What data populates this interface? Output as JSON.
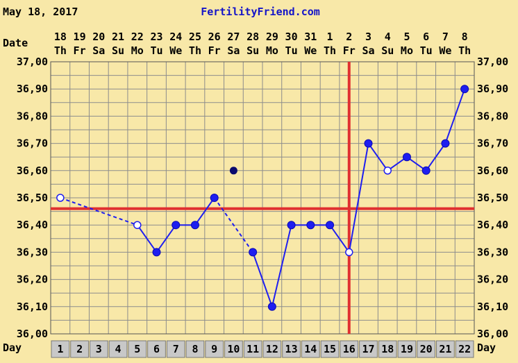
{
  "header": {
    "date": "May 18, 2017",
    "site": "FertilityFriend.com"
  },
  "colors": {
    "background": "#F8E8A8",
    "grid": "#8C8C8C",
    "line": "#1E1EF0",
    "coverline": "#E03030",
    "ovulation": "#E03030",
    "day_cell": "#C8C8C8",
    "site_text": "#1414C8"
  },
  "chart_data": {
    "type": "line",
    "title": "",
    "ylabel": "",
    "xlabel": "Day",
    "date_row_label": "Date",
    "day_row_label": "Day",
    "ylim": [
      36.0,
      37.0
    ],
    "y_ticks": [
      "36,00",
      "36,10",
      "36,20",
      "36,30",
      "36,40",
      "36,50",
      "36,60",
      "36,70",
      "36,80",
      "36,90",
      "37,00"
    ],
    "dates": [
      "18",
      "19",
      "20",
      "21",
      "22",
      "23",
      "24",
      "25",
      "26",
      "27",
      "28",
      "29",
      "30",
      "31",
      "1",
      "2",
      "3",
      "4",
      "5",
      "6",
      "7",
      "8"
    ],
    "weekdays": [
      "Th",
      "Fr",
      "Sa",
      "Su",
      "Mo",
      "Tu",
      "We",
      "Th",
      "Fr",
      "Sa",
      "Su",
      "Mo",
      "Tu",
      "We",
      "Th",
      "Fr",
      "Sa",
      "Su",
      "Mo",
      "Tu",
      "We",
      "Th"
    ],
    "days": [
      "1",
      "2",
      "3",
      "4",
      "5",
      "6",
      "7",
      "8",
      "9",
      "10",
      "11",
      "12",
      "13",
      "14",
      "15",
      "16",
      "17",
      "18",
      "19",
      "20",
      "21",
      "22"
    ],
    "temperatures": [
      {
        "day": 1,
        "temp": 36.5,
        "marker": "open"
      },
      {
        "day": 5,
        "temp": 36.4,
        "marker": "open"
      },
      {
        "day": 6,
        "temp": 36.3,
        "marker": "filled"
      },
      {
        "day": 7,
        "temp": 36.4,
        "marker": "filled"
      },
      {
        "day": 8,
        "temp": 36.4,
        "marker": "filled"
      },
      {
        "day": 9,
        "temp": 36.5,
        "marker": "filled"
      },
      {
        "day": 11,
        "temp": 36.3,
        "marker": "filled"
      },
      {
        "day": 12,
        "temp": 36.1,
        "marker": "filled"
      },
      {
        "day": 13,
        "temp": 36.4,
        "marker": "filled"
      },
      {
        "day": 14,
        "temp": 36.4,
        "marker": "filled"
      },
      {
        "day": 15,
        "temp": 36.4,
        "marker": "filled"
      },
      {
        "day": 16,
        "temp": 36.3,
        "marker": "open"
      },
      {
        "day": 17,
        "temp": 36.7,
        "marker": "filled"
      },
      {
        "day": 18,
        "temp": 36.6,
        "marker": "open"
      },
      {
        "day": 19,
        "temp": 36.65,
        "marker": "filled"
      },
      {
        "day": 20,
        "temp": 36.6,
        "marker": "filled"
      },
      {
        "day": 21,
        "temp": 36.7,
        "marker": "filled"
      },
      {
        "day": 22,
        "temp": 36.9,
        "marker": "filled"
      }
    ],
    "discarded": [
      {
        "day": 10,
        "temp": 36.6
      }
    ],
    "dashed_segments": [
      [
        1,
        5
      ],
      [
        9,
        11
      ]
    ],
    "coverline": 36.46,
    "ovulation_day": 16,
    "grid": true
  }
}
